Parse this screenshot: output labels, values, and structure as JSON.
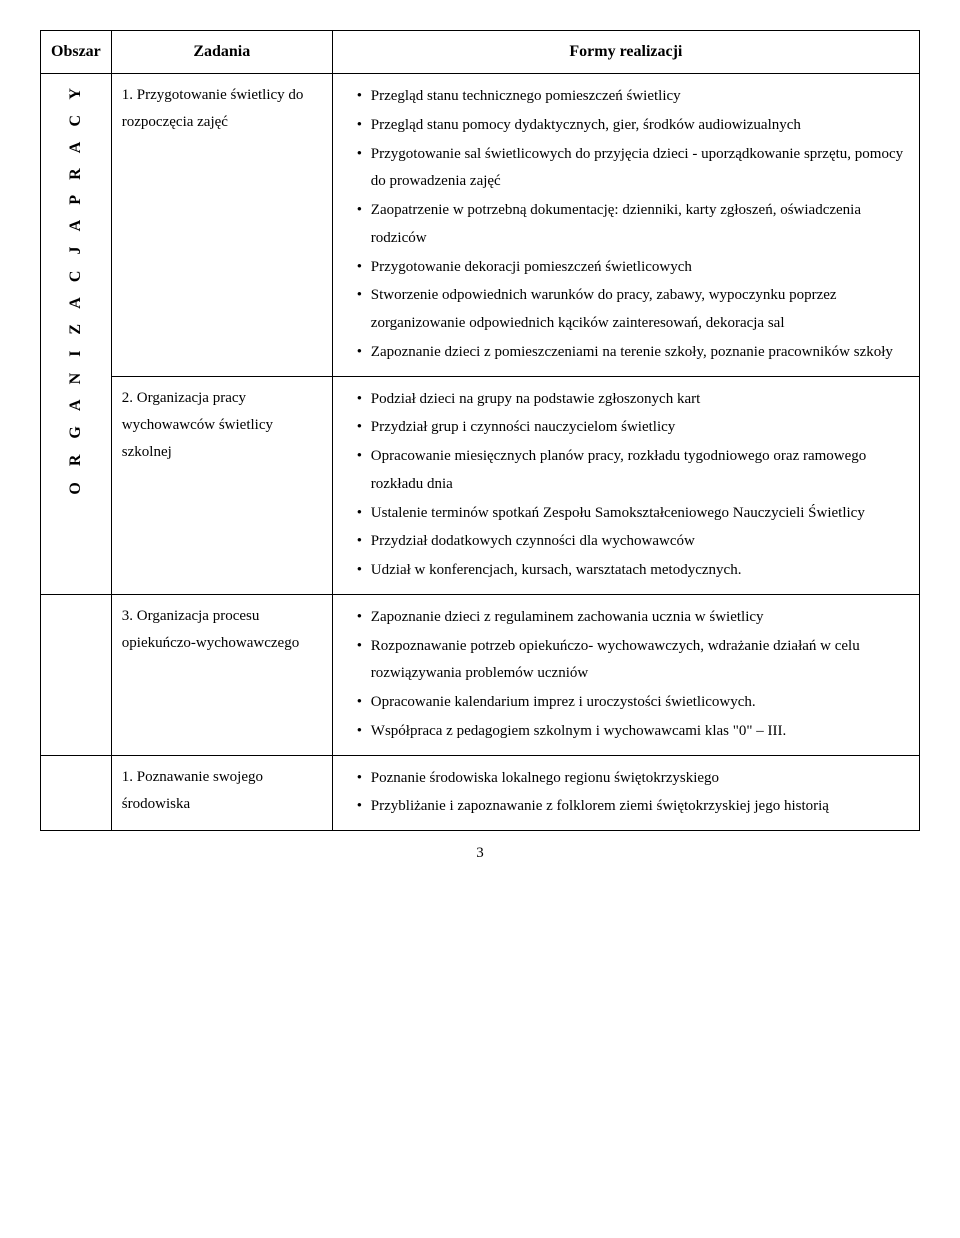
{
  "headers": {
    "col1": "Obszar",
    "col2": "Zadania",
    "col3": "Formy realizacji"
  },
  "obszar": "O R G A N I Z A C J A   P R A C Y",
  "rows": [
    {
      "task": "1. Przygotowanie świetlicy do rozpoczęcia zajęć",
      "items": [
        "Przegląd stanu  technicznego pomieszczeń świetlicy",
        "Przegląd stanu pomocy dydaktycznych, gier, środków audiowizualnych",
        "Przygotowanie sal świetlicowych do przyjęcia dzieci - uporządkowanie sprzętu, pomocy do prowadzenia zajęć",
        "Zaopatrzenie w potrzebną dokumentację: dzienniki, karty zgłoszeń, oświadczenia rodziców",
        "Przygotowanie dekoracji pomieszczeń świetlicowych",
        "Stworzenie odpowiednich warunków do pracy, zabawy, wypoczynku poprzez zorganizowanie odpowiednich kącików zainteresowań, dekoracja sal",
        "Zapoznanie dzieci z pomieszczeniami na terenie szkoły, poznanie pracowników szkoły"
      ]
    },
    {
      "task": "2. Organizacja pracy wychowawców świetlicy szkolnej",
      "items": [
        "Podział dzieci na grupy na podstawie zgłoszonych kart",
        "Przydział grup i czynności nauczycielom świetlicy",
        "Opracowanie miesięcznych planów pracy, rozkładu tygodniowego oraz ramowego rozkładu dnia",
        "Ustalenie terminów spotkań Zespołu Samokształceniowego Nauczycieli Świetlicy",
        "Przydział dodatkowych czynności dla wychowawców",
        "Udział w konferencjach, kursach, warsztatach metodycznych."
      ]
    },
    {
      "task": "3.  Organizacja procesu opiekuńczo-wychowawczego",
      "items": [
        "Zapoznanie dzieci z regulaminem zachowania ucznia w świetlicy",
        "Rozpoznawanie potrzeb opiekuńczo- wychowawczych, wdrażanie działań w celu rozwiązywania problemów uczniów",
        "Opracowanie kalendarium imprez i uroczystości świetlicowych.",
        "Współpraca z pedagogiem szkolnym  i wychowawcami klas \"0\" – III."
      ]
    },
    {
      "task": "1. Poznawanie swojego środowiska",
      "items": [
        "Poznanie środowiska lokalnego regionu świętokrzyskiego",
        "Przybliżanie i zapoznawanie z folklorem ziemi świętokrzyskiej jego historią"
      ]
    }
  ],
  "pageNumber": "3"
}
